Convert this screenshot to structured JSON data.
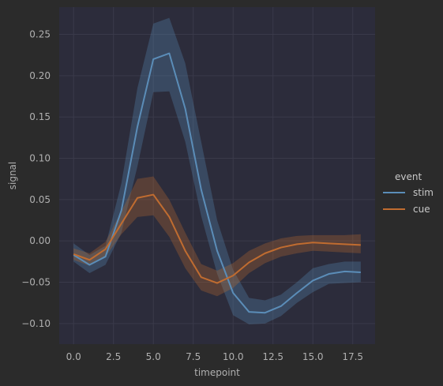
{
  "chart_data": {
    "type": "line",
    "xlabel": "timepoint",
    "ylabel": "signal",
    "xlim": [
      -0.9,
      18.9
    ],
    "ylim": [
      -0.125,
      0.283
    ],
    "xticks": [
      0,
      2.5,
      5,
      7.5,
      10,
      12.5,
      15,
      17.5
    ],
    "xtick_labels": [
      "0.0",
      "2.5",
      "5.0",
      "7.5",
      "10.0",
      "12.5",
      "15.0",
      "17.5"
    ],
    "yticks": [
      -0.1,
      -0.05,
      0,
      0.05,
      0.1,
      0.15,
      0.2,
      0.25
    ],
    "ytick_labels": [
      "−0.10",
      "−0.05",
      "0.00",
      "0.05",
      "0.10",
      "0.15",
      "0.20",
      "0.25"
    ],
    "grid": true,
    "x": [
      0,
      1,
      2,
      3,
      4,
      5,
      6,
      7,
      8,
      9,
      10,
      11,
      12,
      13,
      14,
      15,
      16,
      17,
      18
    ],
    "legend": {
      "title": "event",
      "placement": "right"
    },
    "series": [
      {
        "name": "stim",
        "color": "#5b8db8",
        "values": [
          -0.017,
          -0.029,
          -0.019,
          0.037,
          0.138,
          0.22,
          0.227,
          0.16,
          0.062,
          -0.012,
          -0.063,
          -0.086,
          -0.087,
          -0.079,
          -0.063,
          -0.048,
          -0.04,
          -0.037,
          -0.038
        ],
        "ci_low": [
          -0.025,
          -0.039,
          -0.029,
          0.01,
          0.09,
          0.18,
          0.181,
          0.12,
          0.03,
          -0.04,
          -0.09,
          -0.101,
          -0.1,
          -0.091,
          -0.075,
          -0.062,
          -0.052,
          -0.051,
          -0.05
        ],
        "ci_high": [
          -0.003,
          -0.017,
          -0.006,
          0.07,
          0.185,
          0.263,
          0.27,
          0.215,
          0.12,
          0.025,
          -0.035,
          -0.069,
          -0.072,
          -0.065,
          -0.05,
          -0.033,
          -0.028,
          -0.025,
          -0.025
        ]
      },
      {
        "name": "cue",
        "color": "#c06c30",
        "values": [
          -0.016,
          -0.023,
          -0.01,
          0.021,
          0.052,
          0.056,
          0.029,
          -0.012,
          -0.044,
          -0.051,
          -0.042,
          -0.026,
          -0.015,
          -0.008,
          -0.004,
          -0.002,
          -0.003,
          -0.004,
          -0.005
        ],
        "ci_low": [
          -0.023,
          -0.03,
          -0.019,
          0.008,
          0.029,
          0.031,
          0.005,
          -0.033,
          -0.06,
          -0.067,
          -0.057,
          -0.039,
          -0.027,
          -0.019,
          -0.015,
          -0.012,
          -0.013,
          -0.014,
          -0.015
        ],
        "ci_high": [
          -0.009,
          -0.015,
          -0.001,
          0.036,
          0.075,
          0.078,
          0.05,
          0.01,
          -0.028,
          -0.036,
          -0.027,
          -0.012,
          -0.003,
          0.003,
          0.006,
          0.007,
          0.007,
          0.007,
          0.008
        ]
      }
    ]
  },
  "colors": {
    "background": "#2b2b2b",
    "plot_background": "#2c2c3b",
    "grid": "#3a3a4a",
    "text": "#b0b0b0"
  }
}
